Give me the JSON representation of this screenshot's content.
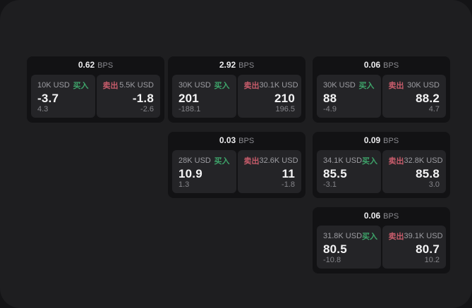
{
  "labels": {
    "bps_suffix": "BPS",
    "buy": "买入",
    "sell": "卖出"
  },
  "colors": {
    "outer_bg": "#141416",
    "page_bg": "#1e1e20",
    "card_bg": "#121214",
    "panel_bg": "#242427",
    "buy_green": "#3ea46a",
    "sell_red": "#c75c6b",
    "value_text": "#f4f4f5",
    "muted_text": "#85858a"
  },
  "cards": [
    {
      "bps": "0.62",
      "buy_amount": "10K USD",
      "buy_value": "-3.7",
      "buy_sub": "4.3",
      "sell_amount": "5.5K USD",
      "sell_value": "-1.8",
      "sell_sub": "-2.6"
    },
    {
      "bps": "2.92",
      "buy_amount": "30K USD",
      "buy_value": "201",
      "buy_sub": "-188.1",
      "sell_amount": "30.1K USD",
      "sell_value": "210",
      "sell_sub": "196.5"
    },
    {
      "bps": "0.06",
      "buy_amount": "30K USD",
      "buy_value": "88",
      "buy_sub": "-4.9",
      "sell_amount": "30K USD",
      "sell_value": "88.2",
      "sell_sub": "4.7"
    },
    {
      "bps": "0.03",
      "buy_amount": "28K USD",
      "buy_value": "10.9",
      "buy_sub": "1.3",
      "sell_amount": "32.6K USD",
      "sell_value": "11",
      "sell_sub": "-1.8"
    },
    {
      "bps": "0.09",
      "buy_amount": "34.1K USD",
      "buy_value": "85.5",
      "buy_sub": "-3.1",
      "sell_amount": "32.8K USD",
      "sell_value": "85.8",
      "sell_sub": "3.0"
    },
    {
      "bps": "0.06",
      "buy_amount": "31.8K USD",
      "buy_value": "80.5",
      "buy_sub": "-10.8",
      "sell_amount": "39.1K USD",
      "sell_value": "80.7",
      "sell_sub": "10.2"
    }
  ]
}
